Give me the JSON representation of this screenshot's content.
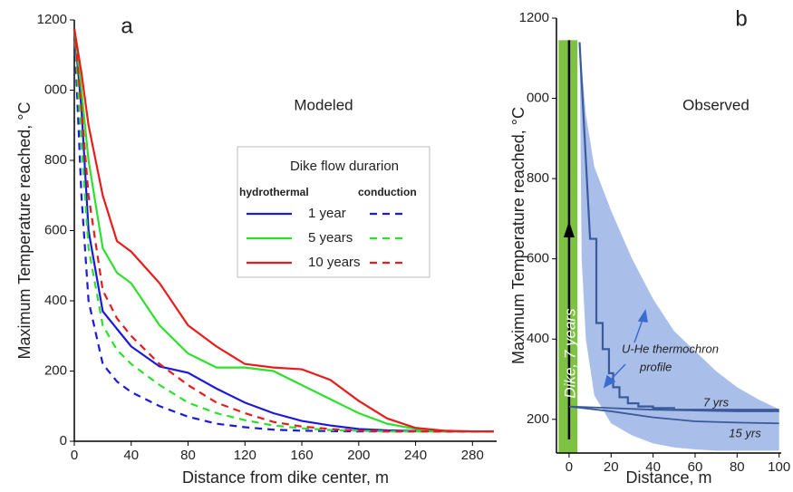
{
  "chart_data": [
    {
      "type": "line",
      "panel_label": "a",
      "annotation": "Modeled",
      "x_label": "Distance from dike center, m",
      "y_label": "Maximum Temperature reached, °C",
      "xlim": [
        0,
        297
      ],
      "ylim": [
        0,
        1200
      ],
      "xticks": [
        0,
        40,
        80,
        120,
        160,
        200,
        240,
        280
      ],
      "yticks": [
        0,
        200,
        400,
        600,
        800,
        {
          "value": 1000,
          "label": "000"
        },
        1200
      ],
      "legend_title": "Dike flow durarion",
      "legend_headers": [
        "hydrothermal",
        "conduction"
      ],
      "x": [
        0,
        5,
        10,
        20,
        30,
        40,
        60,
        80,
        100,
        120,
        140,
        160,
        180,
        200,
        220,
        240,
        260,
        280,
        295
      ],
      "series": [
        {
          "name": "1 year",
          "color": "#1a1adc",
          "hydrothermal": [
            1175,
            950,
            600,
            370,
            320,
            270,
            213,
            195,
            150,
            110,
            80,
            58,
            45,
            35,
            31,
            29,
            28,
            28,
            28
          ],
          "conduction": [
            1175,
            700,
            400,
            220,
            170,
            140,
            100,
            70,
            50,
            40,
            33,
            30,
            29,
            28,
            28,
            28,
            28,
            28,
            28
          ]
        },
        {
          "name": "5 years",
          "color": "#2ee02e",
          "hydrothermal": [
            1175,
            1000,
            800,
            550,
            480,
            450,
            330,
            250,
            210,
            210,
            200,
            160,
            120,
            80,
            50,
            35,
            30,
            28,
            28
          ],
          "conduction": [
            1175,
            850,
            550,
            330,
            260,
            220,
            160,
            110,
            80,
            60,
            45,
            37,
            32,
            30,
            28,
            28,
            28,
            28,
            28
          ]
        },
        {
          "name": "10 years",
          "color": "#e81c1c",
          "hydrothermal": [
            1175,
            1050,
            900,
            700,
            570,
            540,
            450,
            330,
            270,
            220,
            210,
            205,
            175,
            115,
            65,
            38,
            30,
            28,
            28
          ],
          "conduction": [
            1175,
            950,
            700,
            430,
            350,
            300,
            220,
            160,
            110,
            80,
            55,
            42,
            35,
            30,
            28,
            28,
            28,
            28,
            28
          ]
        }
      ]
    },
    {
      "type": "line",
      "panel_label": "b",
      "annotation": "Observed",
      "x_label": "Distance, m",
      "y_label": "Maximum Temperature reached, °C",
      "xlim": [
        -6,
        101
      ],
      "ylim": [
        116,
        1200
      ],
      "xticks": [
        0,
        20,
        40,
        60,
        80,
        100
      ],
      "yticks": [
        200,
        400,
        600,
        800,
        {
          "value": 1000,
          "label": "000"
        },
        1200
      ],
      "dike": {
        "label": "Dike, 7 years",
        "x": [
          -5,
          4
        ],
        "top": 1145,
        "color": "#7dc242"
      },
      "band": {
        "color": "#a9bfea",
        "x": [
          5,
          6,
          8,
          12,
          20,
          30,
          40,
          50,
          60,
          70,
          80,
          90,
          100
        ],
        "upper": [
          1140,
          1080,
          960,
          830,
          720,
          600,
          500,
          420,
          370,
          320,
          280,
          250,
          225
        ],
        "lower": [
          1140,
          600,
          400,
          260,
          190,
          160,
          140,
          130,
          125,
          122,
          122,
          122,
          122
        ]
      },
      "profile_label": [
        "U-He  thermochron",
        "profile"
      ],
      "profile": {
        "color": "#3a5a9c",
        "x": [
          5,
          10,
          13,
          13,
          16,
          16,
          19,
          19,
          21,
          21,
          24,
          24,
          28,
          28,
          33,
          33,
          40,
          40,
          50,
          50,
          60,
          100
        ],
        "values": [
          1140,
          650,
          650,
          440,
          440,
          375,
          375,
          315,
          315,
          280,
          280,
          255,
          255,
          240,
          240,
          232,
          232,
          228,
          228,
          224,
          224,
          224
        ]
      },
      "series": [
        {
          "name": "7 yrs",
          "color": "#3a5a9c",
          "x": [
            0,
            20,
            40,
            60,
            80,
            100
          ],
          "values": [
            232,
            228,
            224,
            222,
            220,
            220
          ]
        },
        {
          "name": "15 yrs",
          "color": "#3a5a9c",
          "x": [
            0,
            20,
            40,
            60,
            80,
            100
          ],
          "values": [
            232,
            220,
            205,
            195,
            192,
            190
          ]
        }
      ]
    }
  ]
}
